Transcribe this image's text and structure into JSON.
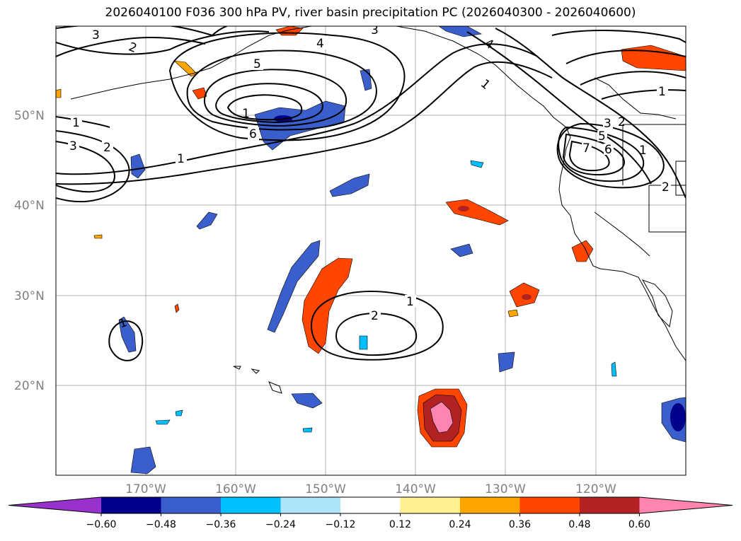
{
  "title": "2026040100 F036 300 hPa PV, river basin precipitation PC (2026040300 - 2026040600)",
  "lat_labels": [
    "50°N",
    "40°N",
    "30°N",
    "20°N"
  ],
  "lon_labels": [
    "170°W",
    "160°W",
    "150°W",
    "140°W",
    "130°W",
    "120°W"
  ],
  "colorbar": {
    "ticks": [
      "-0.60",
      "-0.48",
      "-0.36",
      "-0.24",
      "-0.12",
      "0.12",
      "0.24",
      "0.36",
      "0.48",
      "0.60"
    ],
    "colors": [
      "#9932cc",
      "#00008b",
      "#3a5fcd",
      "#00bfff",
      "#aee4f8",
      "#ffffff",
      "#fff094",
      "#ffa500",
      "#ff4500",
      "#b22222",
      "#ff85b0"
    ]
  },
  "contour_labels": [
    "1",
    "2",
    "3",
    "4",
    "5",
    "6",
    "7"
  ]
}
